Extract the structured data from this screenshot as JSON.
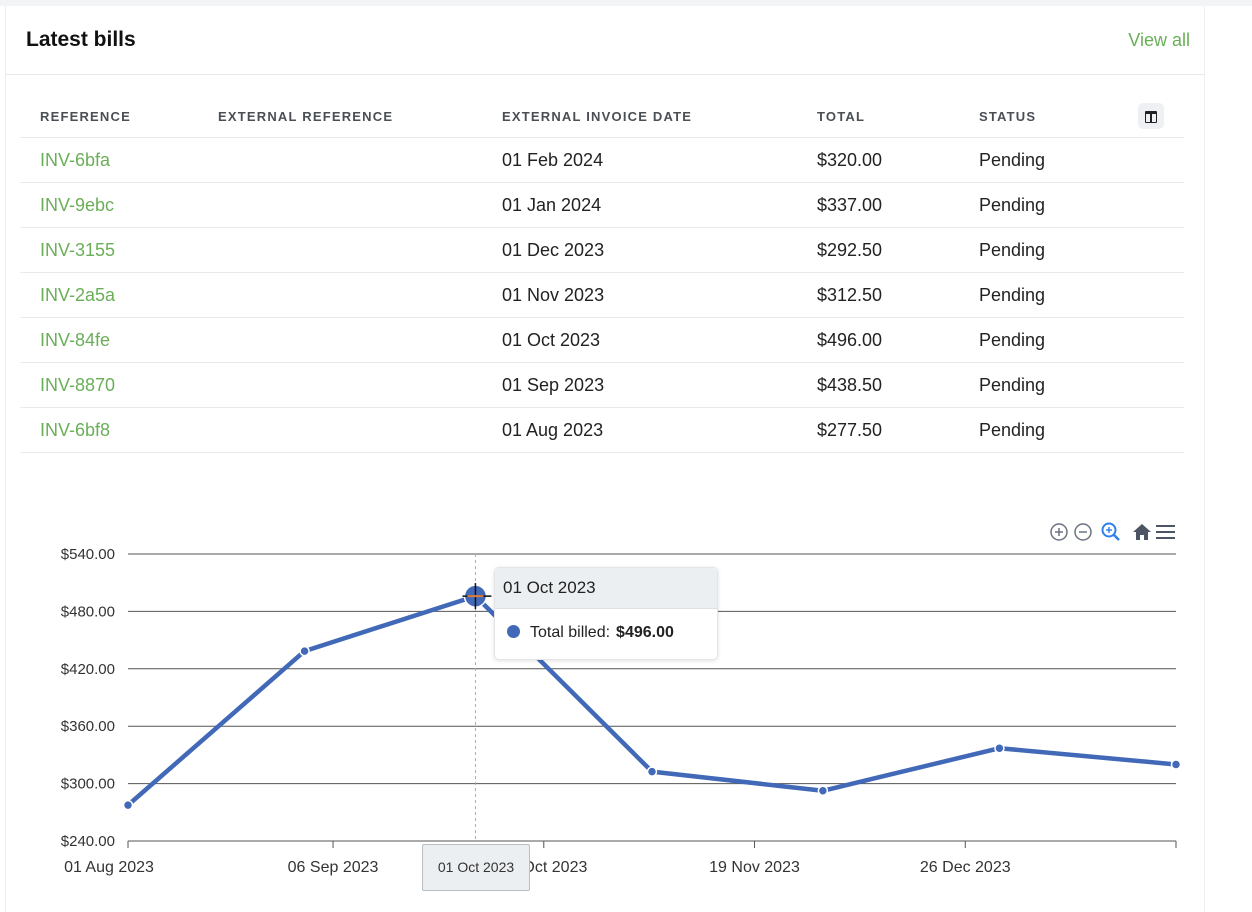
{
  "card": {
    "title": "Latest bills",
    "view_all": "View all"
  },
  "table": {
    "headers": [
      "REFERENCE",
      "EXTERNAL REFERENCE",
      "EXTERNAL INVOICE DATE",
      "TOTAL",
      "STATUS"
    ],
    "rows": [
      {
        "ref": "INV-6bfa",
        "ext_ref": "",
        "date": "01 Feb 2024",
        "total": "$320.00",
        "status": "Pending"
      },
      {
        "ref": "INV-9ebc",
        "ext_ref": "",
        "date": "01 Jan 2024",
        "total": "$337.00",
        "status": "Pending"
      },
      {
        "ref": "INV-3155",
        "ext_ref": "",
        "date": "01 Dec 2023",
        "total": "$292.50",
        "status": "Pending"
      },
      {
        "ref": "INV-2a5a",
        "ext_ref": "",
        "date": "01 Nov 2023",
        "total": "$312.50",
        "status": "Pending"
      },
      {
        "ref": "INV-84fe",
        "ext_ref": "",
        "date": "01 Oct 2023",
        "total": "$496.00",
        "status": "Pending"
      },
      {
        "ref": "INV-8870",
        "ext_ref": "",
        "date": "01 Sep 2023",
        "total": "$438.50",
        "status": "Pending"
      },
      {
        "ref": "INV-6bf8",
        "ext_ref": "",
        "date": "01 Aug 2023",
        "total": "$277.50",
        "status": "Pending"
      }
    ]
  },
  "chart_data": {
    "type": "line",
    "title": "",
    "xlabel": "",
    "ylabel": "",
    "x": [
      "2023-08-01",
      "2023-09-01",
      "2023-10-01",
      "2023-11-01",
      "2023-12-01",
      "2024-01-01",
      "2024-02-01"
    ],
    "series": [
      {
        "name": "Total billed",
        "values": [
          277.5,
          438.5,
          496.0,
          312.5,
          292.5,
          337.0,
          320.0
        ]
      }
    ],
    "ylim": [
      240,
      540
    ],
    "yticks": [
      "$240.00",
      "$300.00",
      "$360.00",
      "$420.00",
      "$480.00",
      "$540.00"
    ],
    "xticks": [
      "01 Aug 2023",
      "06 Sep 2023",
      "13 Oct 2023",
      "19 Nov 2023",
      "26 Dec 2023"
    ],
    "grid": true,
    "color": "#4169b8",
    "hovered_index": 2
  },
  "tooltip": {
    "title": "01 Oct 2023",
    "label": "Total billed:",
    "value": "$496.00"
  },
  "crosshair_label": "01 Oct 2023",
  "toolbar": {
    "icons": [
      "zoom-in-icon",
      "zoom-out-icon",
      "zoom-selection-icon",
      "home-icon",
      "menu-icon"
    ]
  },
  "colors": {
    "accent": "#6aaf58",
    "series": "#4169b8"
  }
}
